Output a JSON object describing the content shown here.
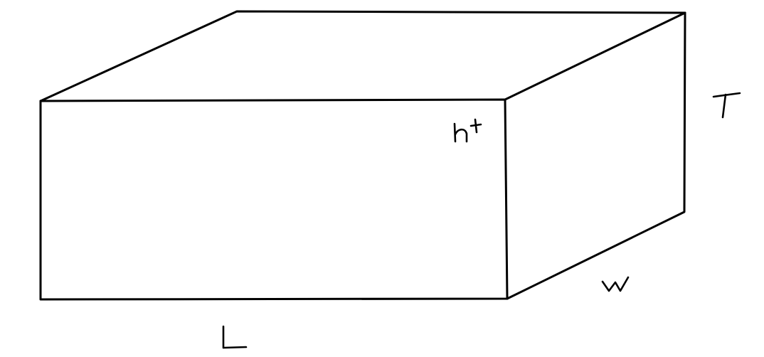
{
  "diagram": {
    "labels": {
      "length": "L",
      "width": "W",
      "thickness": "T",
      "height": "ht"
    }
  }
}
